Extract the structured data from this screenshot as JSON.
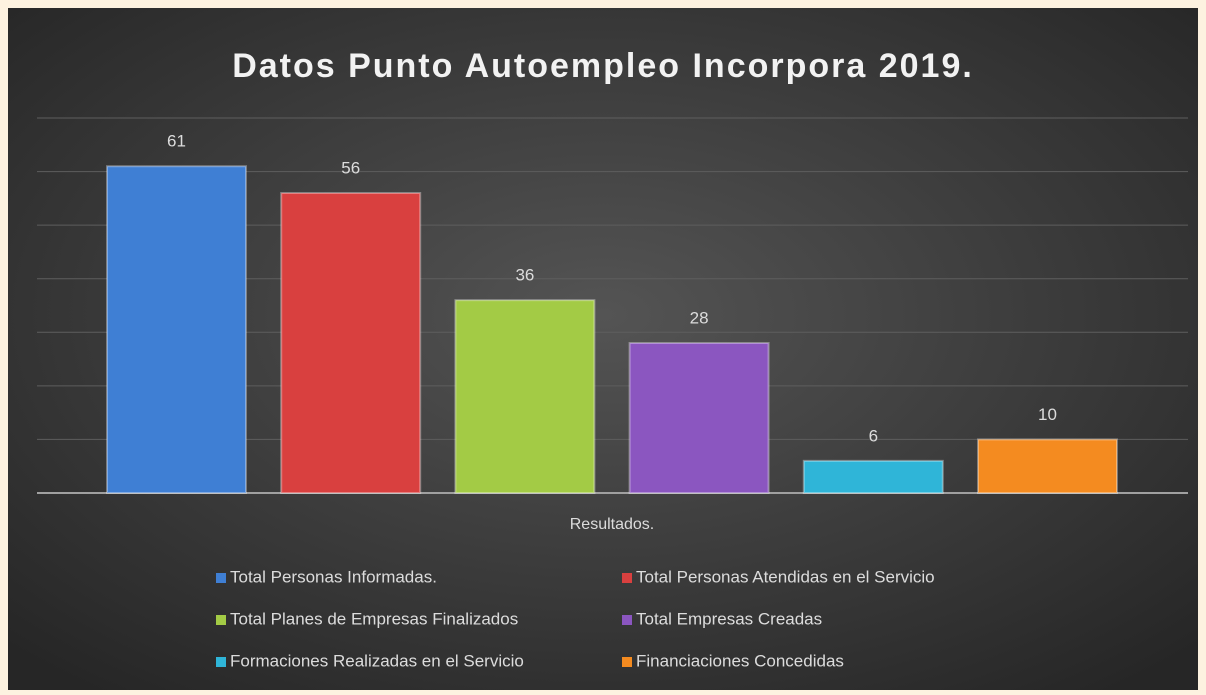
{
  "chart_data": {
    "type": "bar",
    "title": "Datos Punto Autoempleo Incorpora 2019.",
    "x_label": "Resultados.",
    "categories": [
      "Resultados."
    ],
    "series": [
      {
        "name": "Total Personas Informadas.",
        "color": "#3f7fd4",
        "values": [
          61
        ]
      },
      {
        "name": "Total Personas Atendidas en el Servicio",
        "color": "#d9403f",
        "values": [
          56
        ]
      },
      {
        "name": "Total Planes de Empresas Finalizados",
        "color": "#a3cb45",
        "values": [
          36
        ]
      },
      {
        "name": "Total Empresas Creadas",
        "color": "#8b56c0",
        "values": [
          28
        ]
      },
      {
        "name": "Formaciones Realizadas en el Servicio",
        "color": "#2fb5d8",
        "values": [
          6
        ]
      },
      {
        "name": "Financiaciones Concedidas",
        "color": "#f48b20",
        "values": [
          10
        ]
      }
    ],
    "ylim": [
      0,
      70
    ],
    "yticks": [
      0,
      10,
      20,
      30,
      40,
      50,
      60,
      70
    ],
    "grid": true,
    "legend": "bottom"
  }
}
